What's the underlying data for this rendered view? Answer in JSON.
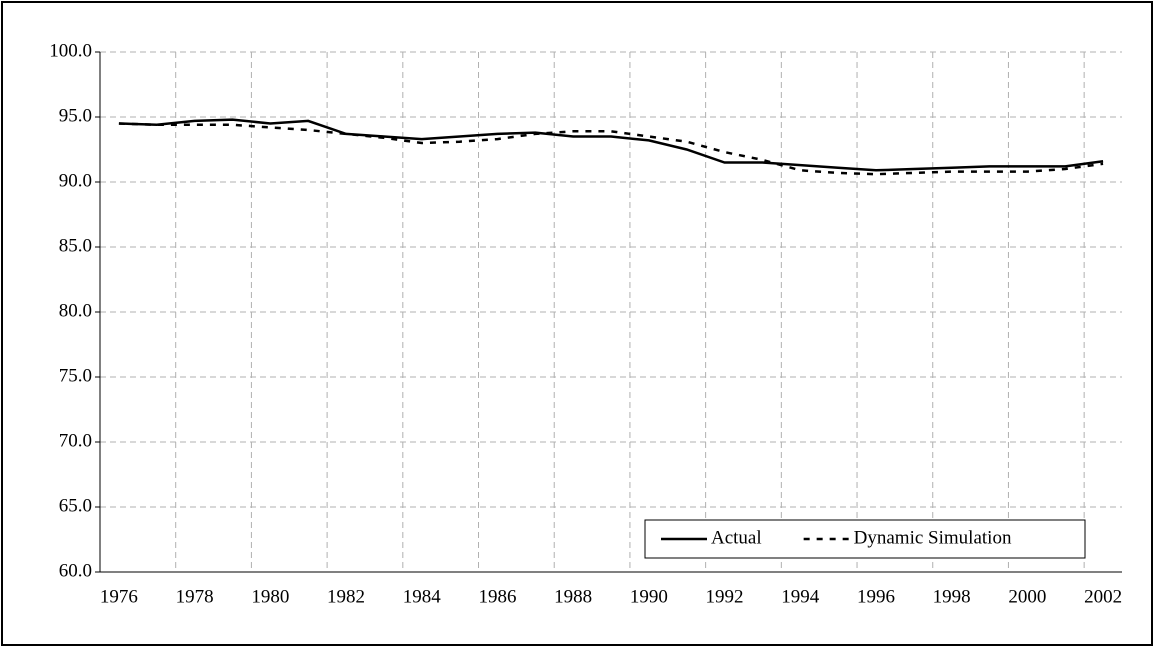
{
  "chart_data": {
    "type": "line",
    "categories": [
      "1976",
      null,
      "1978",
      null,
      "1980",
      null,
      "1982",
      null,
      "1984",
      null,
      "1986",
      null,
      "1988",
      null,
      "1990",
      null,
      "1992",
      null,
      "1994",
      null,
      "1996",
      null,
      "1998",
      null,
      "2000",
      null,
      "2002"
    ],
    "series": [
      {
        "name": "Actual",
        "color": "#000000",
        "style": "solid",
        "values": [
          94.5,
          94.4,
          94.7,
          94.8,
          94.5,
          94.7,
          93.7,
          93.5,
          93.3,
          93.5,
          93.7,
          93.8,
          93.5,
          93.5,
          93.2,
          92.5,
          91.5,
          91.5,
          91.3,
          91.1,
          90.9,
          91.0,
          91.1,
          91.2,
          91.2,
          91.2,
          91.6
        ]
      },
      {
        "name": "Dynamic Simulation",
        "color": "#000000",
        "style": "dashed",
        "values": [
          94.5,
          94.4,
          94.4,
          94.4,
          94.2,
          94.0,
          93.7,
          93.4,
          93.0,
          93.1,
          93.3,
          93.7,
          93.9,
          93.9,
          93.5,
          93.1,
          92.3,
          91.7,
          90.9,
          90.7,
          90.6,
          90.7,
          90.8,
          90.8,
          90.8,
          91.0,
          91.4
        ]
      }
    ],
    "ylim": [
      60,
      100
    ],
    "yticks": [
      {
        "value": 60,
        "label": "60.0"
      },
      {
        "value": 65,
        "label": "65.0"
      },
      {
        "value": 70,
        "label": "70.0"
      },
      {
        "value": 75,
        "label": "75.0"
      },
      {
        "value": 80,
        "label": "80.0"
      },
      {
        "value": 85,
        "label": "85.0"
      },
      {
        "value": 90,
        "label": "90.0"
      },
      {
        "value": 95,
        "label": "95.0"
      },
      {
        "value": 100,
        "label": "100.0"
      }
    ],
    "grid": true,
    "legend": "bottom-right"
  }
}
